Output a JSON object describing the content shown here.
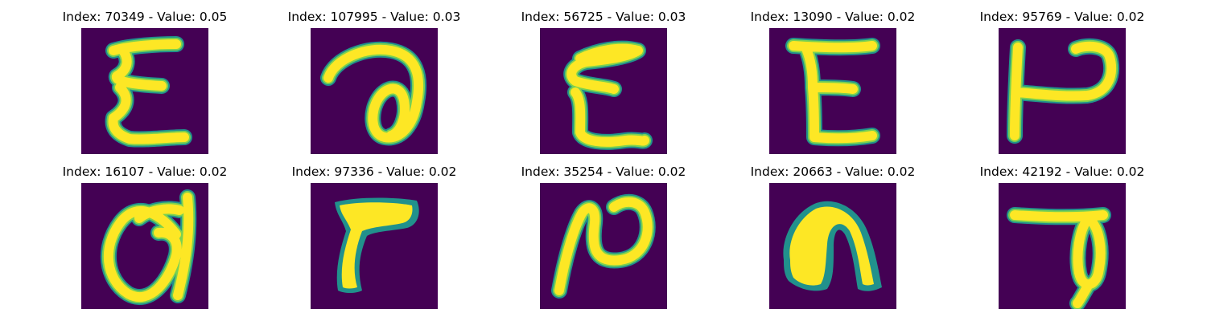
{
  "panels": [
    {
      "title": "Index: 70349 - Value: 0.05",
      "glyph": "E-script"
    },
    {
      "title": "Index: 107995 - Value: 0.03",
      "glyph": "a-loop"
    },
    {
      "title": "Index: 56725 - Value: 0.03",
      "glyph": "E-script"
    },
    {
      "title": "Index: 13090 - Value: 0.02",
      "glyph": "E-block"
    },
    {
      "title": "Index: 95769 - Value: 0.02",
      "glyph": "h-hook"
    },
    {
      "title": "Index: 16107 - Value: 0.02",
      "glyph": "a-loop-large"
    },
    {
      "title": "Index: 97336 - Value: 0.02",
      "glyph": "r-bold"
    },
    {
      "title": "Index: 35254 - Value: 0.02",
      "glyph": "N-script"
    },
    {
      "title": "Index: 20663 - Value: 0.02",
      "glyph": "n-arch"
    },
    {
      "title": "Index: 42192 - Value: 0.02",
      "glyph": "T-loop"
    }
  ],
  "colors": {
    "background": "#440154",
    "edge": "#21918c",
    "mid": "#7ad151",
    "stroke": "#fde725"
  }
}
